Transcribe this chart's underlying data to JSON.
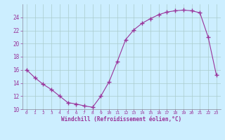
{
  "x": [
    0,
    1,
    2,
    3,
    4,
    5,
    6,
    7,
    8,
    9,
    10,
    11,
    12,
    13,
    14,
    15,
    16,
    17,
    18,
    19,
    20,
    21,
    22,
    23
  ],
  "y": [
    16.0,
    14.8,
    13.8,
    13.0,
    12.0,
    11.0,
    10.8,
    10.5,
    10.3,
    12.0,
    14.2,
    17.3,
    20.6,
    22.1,
    23.1,
    23.8,
    24.4,
    24.8,
    25.0,
    25.1,
    25.0,
    24.7,
    21.0,
    15.2
  ],
  "xlabel": "Windchill (Refroidissement éolien,°C)",
  "line_color": "#993399",
  "marker": "+",
  "marker_size": 5,
  "bg_color": "#cceeff",
  "grid_color": "#aacccc",
  "tick_color": "#993399",
  "label_color": "#993399",
  "ylim": [
    10,
    26
  ],
  "yticks": [
    10,
    12,
    14,
    16,
    18,
    20,
    22,
    24
  ],
  "xlim": [
    -0.5,
    23.5
  ],
  "xticks": [
    0,
    1,
    2,
    3,
    4,
    5,
    6,
    7,
    8,
    9,
    10,
    11,
    12,
    13,
    14,
    15,
    16,
    17,
    18,
    19,
    20,
    21,
    22,
    23
  ]
}
